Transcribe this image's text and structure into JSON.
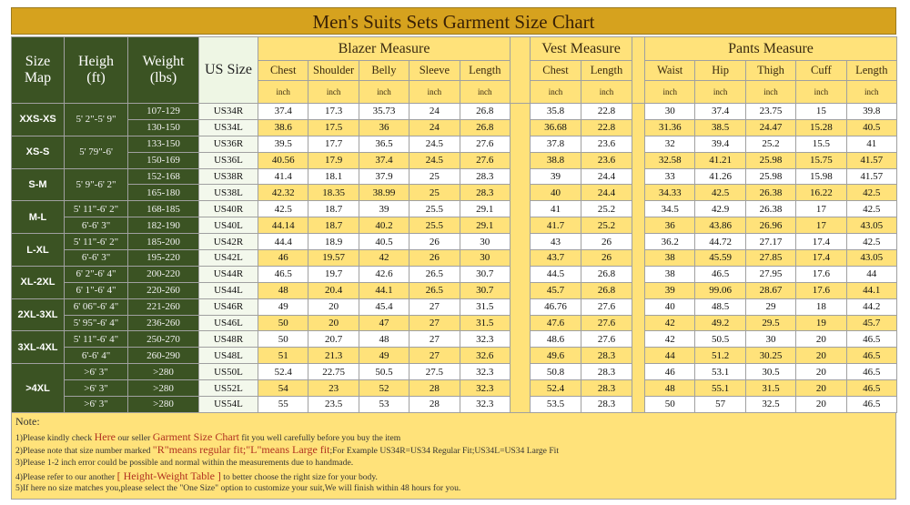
{
  "header": {
    "title": "Men's Suits Sets Garment Size Chart",
    "left_columns": [
      "Size Map",
      "Heigh (ft)",
      "Weight (lbs)",
      "US Size"
    ],
    "groups": [
      {
        "name": "Blazer Measure",
        "columns": [
          "Chest",
          "Shoulder",
          "Belly",
          "Sleeve",
          "Length"
        ],
        "units": [
          "inch",
          "inch",
          "inch",
          "inch",
          "inch"
        ]
      },
      {
        "name": "Vest Measure",
        "columns": [
          "Chest",
          "Length"
        ],
        "units": [
          "inch",
          "inch"
        ]
      },
      {
        "name": "Pants Measure",
        "columns": [
          "Waist",
          "Hip",
          "Thigh",
          "Cuff",
          "Length"
        ],
        "units": [
          "inch",
          "inch",
          "inch",
          "inch",
          "inch"
        ]
      }
    ]
  },
  "table": {
    "groups": [
      {
        "size_map": "XXS-XS",
        "rows": [
          {
            "height": "5' 2\"-5' 9\"",
            "weight": "107-129",
            "us_size": "US34R",
            "blazer": [
              37.4,
              17.3,
              35.73,
              24,
              26.8
            ],
            "vest": [
              35.8,
              22.8
            ],
            "pants": [
              30,
              37.4,
              23.75,
              15,
              39.8
            ]
          },
          {
            "weight": "130-150",
            "us_size": "US34L",
            "blazer": [
              38.6,
              17.5,
              36,
              24,
              26.8
            ],
            "vest": [
              36.68,
              22.8
            ],
            "pants": [
              31.36,
              38.5,
              24.47,
              15.28,
              40.5
            ]
          }
        ]
      },
      {
        "size_map": "XS-S",
        "rows": [
          {
            "height": "5' 79\"-6'",
            "weight": "133-150",
            "us_size": "US36R",
            "blazer": [
              39.5,
              17.7,
              36.5,
              24.5,
              27.6
            ],
            "vest": [
              37.8,
              23.6
            ],
            "pants": [
              32,
              39.4,
              25.2,
              15.5,
              41
            ]
          },
          {
            "weight": "150-169",
            "us_size": "US36L",
            "blazer": [
              40.56,
              17.9,
              37.4,
              24.5,
              27.6
            ],
            "vest": [
              38.8,
              23.6
            ],
            "pants": [
              32.58,
              41.21,
              25.98,
              15.75,
              41.57
            ]
          }
        ]
      },
      {
        "size_map": "S-M",
        "rows": [
          {
            "height": "5' 9\"-6' 2\"",
            "weight": "152-168",
            "us_size": "US38R",
            "blazer": [
              41.4,
              18.1,
              37.9,
              25,
              28.3
            ],
            "vest": [
              39,
              24.4
            ],
            "pants": [
              33,
              41.26,
              25.98,
              15.98,
              41.57
            ]
          },
          {
            "weight": "165-180",
            "us_size": "US38L",
            "blazer": [
              42.32,
              18.35,
              38.99,
              25,
              28.3
            ],
            "vest": [
              40,
              24.4
            ],
            "pants": [
              34.33,
              42.5,
              26.38,
              16.22,
              42.5
            ]
          }
        ]
      },
      {
        "size_map": "M-L",
        "rows": [
          {
            "height": "5' 11\"-6' 2\"",
            "weight": "168-185",
            "us_size": "US40R",
            "blazer": [
              42.5,
              18.7,
              39,
              25.5,
              29.1
            ],
            "vest": [
              41,
              25.2
            ],
            "pants": [
              34.5,
              42.9,
              26.38,
              17,
              42.5
            ]
          },
          {
            "height": "6'-6' 3\"",
            "weight": "182-190",
            "us_size": "US40L",
            "blazer": [
              44.14,
              18.7,
              40.2,
              25.5,
              29.1
            ],
            "vest": [
              41.7,
              25.2
            ],
            "pants": [
              36,
              43.86,
              26.96,
              17,
              43.05
            ]
          }
        ]
      },
      {
        "size_map": "L-XL",
        "rows": [
          {
            "height": "5' 11\"-6' 2\"",
            "weight": "185-200",
            "us_size": "US42R",
            "blazer": [
              44.4,
              18.9,
              40.5,
              26,
              30
            ],
            "vest": [
              43,
              26
            ],
            "pants": [
              36.2,
              44.72,
              27.17,
              17.4,
              42.5
            ]
          },
          {
            "height": "6'-6' 3\"",
            "weight": "195-220",
            "us_size": "US42L",
            "blazer": [
              46,
              19.57,
              42,
              26,
              30
            ],
            "vest": [
              43.7,
              26
            ],
            "pants": [
              38,
              45.59,
              27.85,
              17.4,
              43.05
            ]
          }
        ]
      },
      {
        "size_map": "XL-2XL",
        "rows": [
          {
            "height": "6' 2\"-6' 4\"",
            "weight": "200-220",
            "us_size": "US44R",
            "blazer": [
              46.5,
              19.7,
              42.6,
              26.5,
              30.7
            ],
            "vest": [
              44.5,
              26.8
            ],
            "pants": [
              38,
              46.5,
              27.95,
              17.6,
              44
            ]
          },
          {
            "height": "6' 1\"-6' 4\"",
            "weight": "220-260",
            "us_size": "US44L",
            "blazer": [
              48,
              20.4,
              44.1,
              26.5,
              30.7
            ],
            "vest": [
              45.7,
              26.8
            ],
            "pants": [
              39,
              99.06,
              28.67,
              17.6,
              44.1
            ]
          }
        ]
      },
      {
        "size_map": "2XL-3XL",
        "rows": [
          {
            "height": "6' 06\"-6' 4\"",
            "weight": "221-260",
            "us_size": "US46R",
            "blazer": [
              49,
              20,
              45.4,
              27,
              31.5
            ],
            "vest": [
              46.76,
              27.6
            ],
            "pants": [
              40,
              48.5,
              29,
              18,
              44.2
            ]
          },
          {
            "height": "5' 95\"-6' 4\"",
            "weight": "236-260",
            "us_size": "US46L",
            "blazer": [
              50,
              20,
              47,
              27,
              31.5
            ],
            "vest": [
              47.6,
              27.6
            ],
            "pants": [
              42,
              49.2,
              29.5,
              19,
              45.7
            ]
          }
        ]
      },
      {
        "size_map": "3XL-4XL",
        "rows": [
          {
            "height": "5' 11\"-6' 4\"",
            "weight": "250-270",
            "us_size": "US48R",
            "blazer": [
              50,
              20.7,
              48,
              27,
              32.3
            ],
            "vest": [
              48.6,
              27.6
            ],
            "pants": [
              42,
              50.5,
              30,
              20,
              46.5
            ]
          },
          {
            "height": "6'-6' 4\"",
            "weight": "260-290",
            "us_size": "US48L",
            "blazer": [
              51,
              21.3,
              49,
              27,
              32.6
            ],
            "vest": [
              49.6,
              28.3
            ],
            "pants": [
              44,
              51.2,
              30.25,
              20,
              46.5
            ]
          }
        ]
      },
      {
        "size_map": ">4XL",
        "rows": [
          {
            "height": ">6' 3\"",
            "weight": ">280",
            "us_size": "US50L",
            "blazer": [
              52.4,
              22.75,
              50.5,
              27.5,
              32.3
            ],
            "vest": [
              50.8,
              28.3
            ],
            "pants": [
              46,
              53.1,
              30.5,
              20,
              46.5
            ]
          },
          {
            "height": ">6' 3\"",
            "weight": ">280",
            "us_size": "US52L",
            "blazer": [
              54,
              23,
              52,
              28,
              32.3
            ],
            "vest": [
              52.4,
              28.3
            ],
            "pants": [
              48,
              55.1,
              31.5,
              20,
              46.5
            ]
          },
          {
            "height": ">6' 3\"",
            "weight": ">280",
            "us_size": "US54L",
            "blazer": [
              55,
              23.5,
              53,
              28,
              32.3
            ],
            "vest": [
              53.5,
              28.3
            ],
            "pants": [
              50,
              57,
              32.5,
              20,
              46.5
            ]
          }
        ]
      }
    ]
  },
  "notes": {
    "heading": "Note:",
    "items": [
      [
        "1)Please kindly check ",
        "Here",
        " our seller ",
        "Garment Size Chart",
        " fit you well carefully before you buy the item"
      ],
      [
        "2)Please note that size number marked ",
        "\"R\"means regular fit;\"L\"means Large fit",
        ";For Example US34R=US34 Regular Fit;US34L=US34 Large Fit"
      ],
      [
        "3)Please 1-2 inch error could be possible and normal within the measurements due to handmade."
      ],
      [
        "4)Please refer to our another ",
        "[ Height-Weight Table ]",
        " to better choose the right size for your body."
      ],
      [
        "5)If here no size matches you,please select the \"One Size\" option to customize your suit,We will finish within 48 hours for you."
      ]
    ]
  }
}
